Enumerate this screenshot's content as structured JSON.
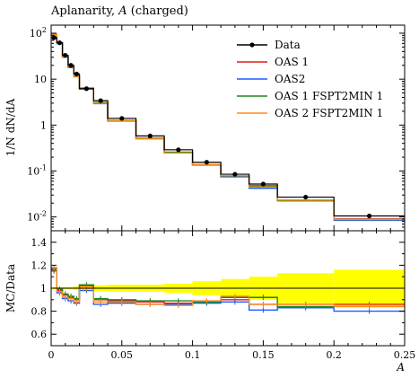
{
  "chart_data": {
    "type": "line",
    "title": "Aplanarity, A (charged)",
    "xlabel": "A",
    "ylabel_main": "1/N dN/dA",
    "ylabel_ratio": "MC/Data",
    "xlim": [
      0,
      0.25
    ],
    "ylim_main": [
      0.005,
      150
    ],
    "yscale_main": "log",
    "ylim_ratio": [
      0.5,
      1.5
    ],
    "legend_position": "top-right",
    "x_ticks": [
      "0",
      "0.05",
      "0.1",
      "0.15",
      "0.2",
      "0.25"
    ],
    "y_ticks_main": [
      "10^2",
      "10",
      "1",
      "10^-1",
      "10^-2"
    ],
    "y_ticks_ratio": [
      "0.6",
      "0.8",
      "1",
      "1.2",
      "1.4"
    ],
    "bin_edges": [
      0,
      0.004,
      0.008,
      0.012,
      0.016,
      0.02,
      0.03,
      0.04,
      0.06,
      0.08,
      0.1,
      0.12,
      0.14,
      0.16,
      0.2,
      0.25
    ],
    "data": {
      "name": "Data",
      "values": [
        80,
        62,
        33,
        20,
        13,
        6.2,
        3.4,
        1.4,
        0.58,
        0.29,
        0.155,
        0.085,
        0.052,
        0.027,
        0.0105
      ]
    },
    "series": [
      {
        "name": "OAS 1",
        "color": "#e31a1c",
        "ratio": [
          1.15,
          0.98,
          0.94,
          0.92,
          0.9,
          1.02,
          0.9,
          0.89,
          0.88,
          0.87,
          0.88,
          0.9,
          0.86,
          0.86,
          0.86
        ]
      },
      {
        "name": "OAS2",
        "color": "#1f5bff",
        "ratio": [
          1.17,
          0.96,
          0.91,
          0.89,
          0.87,
          0.98,
          0.86,
          0.87,
          0.86,
          0.86,
          0.87,
          0.88,
          0.81,
          0.83,
          0.8
        ]
      },
      {
        "name": "OAS 1 FSPT2MIN 1",
        "color": "#1a8a1a",
        "ratio": [
          1.16,
          0.99,
          0.95,
          0.93,
          0.91,
          1.03,
          0.91,
          0.9,
          0.89,
          0.89,
          0.88,
          0.92,
          0.92,
          0.84,
          0.84
        ]
      },
      {
        "name": "OAS 2 FSPT2MIN 1",
        "color": "#ff8c1a",
        "ratio": [
          1.18,
          0.97,
          0.92,
          0.91,
          0.88,
          1.0,
          0.88,
          0.88,
          0.86,
          0.85,
          0.89,
          0.93,
          0.86,
          0.86,
          0.84
        ]
      }
    ],
    "data_uncertainty_band": [
      0.01,
      0.01,
      0.01,
      0.01,
      0.015,
      0.02,
      0.025,
      0.03,
      0.03,
      0.04,
      0.06,
      0.08,
      0.1,
      0.13,
      0.16
    ]
  }
}
